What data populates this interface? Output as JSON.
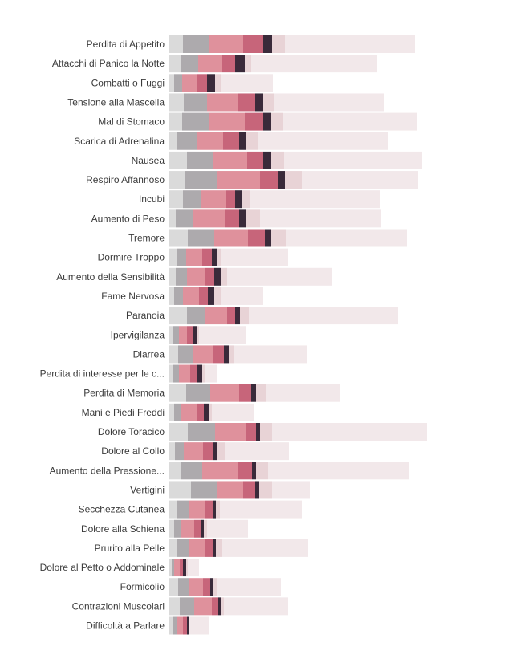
{
  "chart_data": {
    "type": "bar",
    "orientation": "horizontal",
    "stacked": true,
    "grid": false,
    "legend": "none",
    "title": "",
    "xlabel": "",
    "ylabel": "",
    "colors": [
      "#dadada",
      "#adaaad",
      "#df919c",
      "#c7657a",
      "#3a2a3a",
      "#e8d3d6",
      "#f2e8ea"
    ],
    "categories": [
      "Perdita di Appetito",
      "Attacchi di Panico la Notte",
      "Combatti o Fuggi",
      "Tensione alla Mascella",
      "Mal di Stomaco",
      "Scarica di Adrenalina",
      "Nausea",
      "Respiro Affannoso",
      "Incubi",
      "Aumento di Peso",
      "Tremore",
      "Dormire Troppo",
      "Aumento della Sensibilità",
      "Fame Nervosa",
      "Paranoia",
      "Ipervigilanza",
      "Diarrea",
      "Perdita di interesse per le c...",
      "Perdita di Memoria",
      "Mani e Piedi Freddi",
      "Dolore Toracico",
      "Dolore al Collo",
      "Aumento della Pressione...",
      "Vertigini",
      "Secchezza Cutanea",
      "Dolore alla Schiena",
      "Prurito alla Pelle",
      "Dolore al Petto o Addominale",
      "Formicolio",
      "Contrazioni Muscolari",
      "Difficoltà a Parlare"
    ],
    "series": [
      {
        "values": [
          17,
          14,
          6,
          18,
          16,
          10,
          22,
          20,
          17,
          8,
          23,
          9,
          8,
          6,
          22,
          5,
          11,
          4,
          21,
          6,
          23,
          7,
          14,
          27,
          10,
          6,
          9,
          3,
          11,
          13,
          4
        ]
      },
      {
        "values": [
          32,
          22,
          10,
          29,
          33,
          24,
          32,
          40,
          23,
          22,
          33,
          12,
          14,
          11,
          23,
          7,
          18,
          8,
          30,
          9,
          34,
          11,
          27,
          32,
          15,
          9,
          15,
          3,
          13,
          18,
          5
        ]
      },
      {
        "values": [
          43,
          30,
          18,
          38,
          45,
          33,
          43,
          53,
          30,
          39,
          42,
          20,
          22,
          20,
          27,
          10,
          26,
          14,
          36,
          20,
          38,
          24,
          45,
          33,
          19,
          16,
          20,
          7,
          18,
          22,
          8
        ]
      },
      {
        "values": [
          25,
          16,
          13,
          22,
          23,
          20,
          20,
          22,
          12,
          18,
          21,
          12,
          12,
          11,
          10,
          7,
          13,
          9,
          15,
          8,
          13,
          13,
          17,
          15,
          10,
          8,
          10,
          4,
          9,
          8,
          5
        ]
      },
      {
        "values": [
          11,
          12,
          10,
          10,
          10,
          9,
          10,
          9,
          8,
          9,
          8,
          7,
          8,
          8,
          6,
          6,
          6,
          6,
          6,
          6,
          5,
          5,
          5,
          5,
          4,
          4,
          4,
          4,
          4,
          3,
          2
        ]
      },
      {
        "values": [
          16,
          8,
          7,
          14,
          15,
          14,
          16,
          21,
          11,
          17,
          18,
          5,
          8,
          8,
          11,
          2,
          7,
          3,
          12,
          4,
          15,
          9,
          15,
          16,
          5,
          4,
          8,
          2,
          5,
          4,
          1
        ]
      },
      {
        "values": [
          162,
          157,
          65,
          136,
          166,
          163,
          172,
          145,
          161,
          151,
          151,
          83,
          131,
          53,
          186,
          58,
          91,
          15,
          93,
          52,
          193,
          80,
          176,
          47,
          102,
          51,
          107,
          14,
          79,
          80,
          24
        ]
      }
    ]
  }
}
